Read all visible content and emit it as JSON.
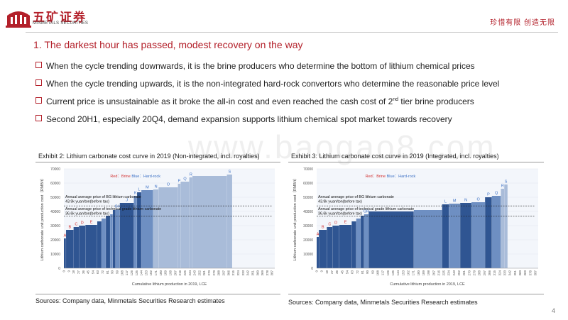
{
  "header": {
    "logo_text": "五矿证券",
    "logo_sub": "MINMETALS SECURITIES",
    "slogan": "珍惜有限  创造无限"
  },
  "title": "1. The darkest hour has passed, modest recovery on the way",
  "bullets": [
    {
      "pre": "When the cycle trending downwards, it is the brine producers who determine the bottom of lithium chemical prices",
      "sup": "",
      "post": ""
    },
    {
      "pre": "When the cycle trending upwards, it is the non-integrated hard-rock convertors who determine the reasonable price level",
      "sup": "",
      "post": ""
    },
    {
      "pre": "Current price is unsustainable as it broke the all-in cost and even reached the cash cost of 2",
      "sup": "nd",
      "post": " tier brine producers"
    },
    {
      "pre": "Second 20H1, especially 20Q4, demand expansion supports lithium chemical spot market towards recovery",
      "sup": "",
      "post": ""
    }
  ],
  "watermark": "www.baogao8.com",
  "exhibits": [
    {
      "title": "Exhibit 2: Lithium carbonate cost curve in 2019 (Non-integrated, incl. royalties)",
      "source": "Sources: Company data, Minmetals Securities Research estimates"
    },
    {
      "title": "Exhibit 3: Lithium carbonate cost curve in 2019 (Integrated, incl. royalties)",
      "source": "Sources: Company data, Minmetals Securities Research estimates"
    }
  ],
  "page_number": "4",
  "colors": {
    "brand_red": "#b3202a",
    "bar_light": "#a9bcd9",
    "bar_mid": "#6e8fc2",
    "bar_dark": "#2f5592",
    "brine_label": "#d23030",
    "rock_label": "#3a6fc4"
  },
  "chart_data": [
    {
      "type": "bar",
      "title": "Exhibit 2: Lithium carbonate cost curve in 2019 (Non-integrated, incl. royalties)",
      "xlabel": "Cumulative lithium production in 2019, LCE",
      "ylabel": "Lithium carbonate unit production cost（RMB/t）",
      "ylim": [
        0,
        70000
      ],
      "yticks": [
        0,
        10000,
        20000,
        30000,
        40000,
        50000,
        60000,
        70000
      ],
      "xticks": [
        "0",
        "9",
        "18",
        "27",
        "36",
        "45",
        "54",
        "63",
        "72",
        "81",
        "90",
        "99",
        "108",
        "117",
        "126",
        "135",
        "144",
        "153",
        "162",
        "171",
        "180",
        "189",
        "198",
        "207",
        "216",
        "225",
        "234",
        "243",
        "252",
        "261",
        "270",
        "279",
        "288",
        "297",
        "306",
        "315",
        "324",
        "333",
        "342",
        "351",
        "360",
        "369",
        "378",
        "387"
      ],
      "x_max": 392,
      "legend": {
        "brine": "Red：Brine",
        "rock": "Blue：Hard-rock"
      },
      "bars": [
        {
          "label": "A",
          "width": 4,
          "value": 21000,
          "type": "brine"
        },
        {
          "label": "B",
          "width": 14,
          "value": 27000,
          "type": "brine"
        },
        {
          "label": "C",
          "width": 10,
          "value": 29000,
          "type": "brine"
        },
        {
          "label": "D",
          "width": 12,
          "value": 30000,
          "type": "brine"
        },
        {
          "label": "E",
          "width": 22,
          "value": 30500,
          "type": "brine"
        },
        {
          "label": "",
          "width": 8,
          "value": 33000,
          "type": "rock"
        },
        {
          "label": "",
          "width": 8,
          "value": 35000,
          "type": "rock"
        },
        {
          "label": "",
          "width": 8,
          "value": 37000,
          "type": "rock"
        },
        {
          "label": "",
          "width": 5,
          "value": 38000,
          "type": "rock"
        },
        {
          "label": "",
          "width": 5,
          "value": 41000,
          "type": "rock"
        },
        {
          "label": "GH",
          "width": 8,
          "value": 41500,
          "type": "rock"
        },
        {
          "label": "J",
          "width": 26,
          "value": 46000,
          "type": "rock"
        },
        {
          "label": "K",
          "width": 6,
          "value": 51000,
          "type": "rock"
        },
        {
          "label": "L",
          "width": 8,
          "value": 53500,
          "type": "rock"
        },
        {
          "label": "M",
          "width": 22,
          "value": 55000,
          "type": "rock"
        },
        {
          "label": "N",
          "width": 10,
          "value": 55500,
          "type": "rock"
        },
        {
          "label": "O",
          "width": 36,
          "value": 57000,
          "type": "rock"
        },
        {
          "label": "P",
          "width": 5,
          "value": 59500,
          "type": "rock"
        },
        {
          "label": "Q",
          "width": 16,
          "value": 61000,
          "type": "rock"
        },
        {
          "label": "R",
          "width": 6,
          "value": 64000,
          "type": "rock"
        },
        {
          "label": "",
          "width": 64,
          "value": 65000,
          "type": "rock"
        },
        {
          "label": "S",
          "width": 10,
          "value": 66000,
          "type": "rock"
        }
      ],
      "annotations": [
        {
          "text": "Annual average price of BG lithium carbonate 43.9k yuan/ton(before tax)",
          "value": 43900
        },
        {
          "text": "Annual average price of technical grade lithium carbonate 36.6k yuan/ton(before tax)",
          "value": 36600
        }
      ]
    },
    {
      "type": "bar",
      "title": "Exhibit 3: Lithium carbonate cost curve in 2019 (Integrated, incl. royalties)",
      "xlabel": "Cumulative lithium production in 2019, LCE",
      "ylabel": "Lithium carbonate unit production cost（RMB/t）",
      "ylim": [
        0,
        70000
      ],
      "yticks": [
        0,
        10000,
        20000,
        30000,
        40000,
        50000,
        60000,
        70000
      ],
      "xticks": [
        "0",
        "9",
        "18",
        "27",
        "36",
        "45",
        "54",
        "63",
        "72",
        "81",
        "90",
        "99",
        "108",
        "117",
        "126",
        "135",
        "144",
        "153",
        "162",
        "171",
        "180",
        "189",
        "198",
        "207",
        "216",
        "225",
        "234",
        "243",
        "252",
        "261",
        "270",
        "279",
        "288",
        "297",
        "306",
        "315",
        "324",
        "333",
        "342",
        "351",
        "360",
        "369",
        "378",
        "387"
      ],
      "x_max": 392,
      "legend": {
        "brine": "Red：Brine",
        "rock": "Blue：Hard-rock"
      },
      "bars": [
        {
          "label": "A",
          "width": 4,
          "value": 22000,
          "type": "brine"
        },
        {
          "label": "B",
          "width": 14,
          "value": 27000,
          "type": "brine"
        },
        {
          "label": "C",
          "width": 10,
          "value": 29000,
          "type": "brine"
        },
        {
          "label": "D",
          "width": 12,
          "value": 30000,
          "type": "brine"
        },
        {
          "label": "E",
          "width": 22,
          "value": 30500,
          "type": "brine"
        },
        {
          "label": "",
          "width": 8,
          "value": 33000,
          "type": "rock"
        },
        {
          "label": "",
          "width": 8,
          "value": 35000,
          "type": "rock"
        },
        {
          "label": "",
          "width": 6,
          "value": 37000,
          "type": "rock"
        },
        {
          "label": "GH",
          "width": 8,
          "value": 38000,
          "type": "rock"
        },
        {
          "label": "",
          "width": 80,
          "value": 40000,
          "type": "rock"
        },
        {
          "label": "",
          "width": 50,
          "value": 41000,
          "type": "rock"
        },
        {
          "label": "L",
          "width": 12,
          "value": 45000,
          "type": "rock"
        },
        {
          "label": "M",
          "width": 20,
          "value": 45500,
          "type": "rock"
        },
        {
          "label": "N",
          "width": 20,
          "value": 46000,
          "type": "rock"
        },
        {
          "label": "O",
          "width": 24,
          "value": 46500,
          "type": "rock"
        },
        {
          "label": "P",
          "width": 12,
          "value": 50000,
          "type": "rock"
        },
        {
          "label": "Q",
          "width": 16,
          "value": 51000,
          "type": "rock"
        },
        {
          "label": "R",
          "width": 6,
          "value": 56000,
          "type": "rock"
        },
        {
          "label": "S",
          "width": 6,
          "value": 59000,
          "type": "rock"
        }
      ],
      "annotations": [
        {
          "text": "Annual average price of BG lithium carbonate 43.9k yuan/ton(before tax)",
          "value": 43900
        },
        {
          "text": "Annual average price of technical grade lithium carbonate 36.6k yuan/ton(before tax)",
          "value": 36600
        }
      ]
    }
  ]
}
